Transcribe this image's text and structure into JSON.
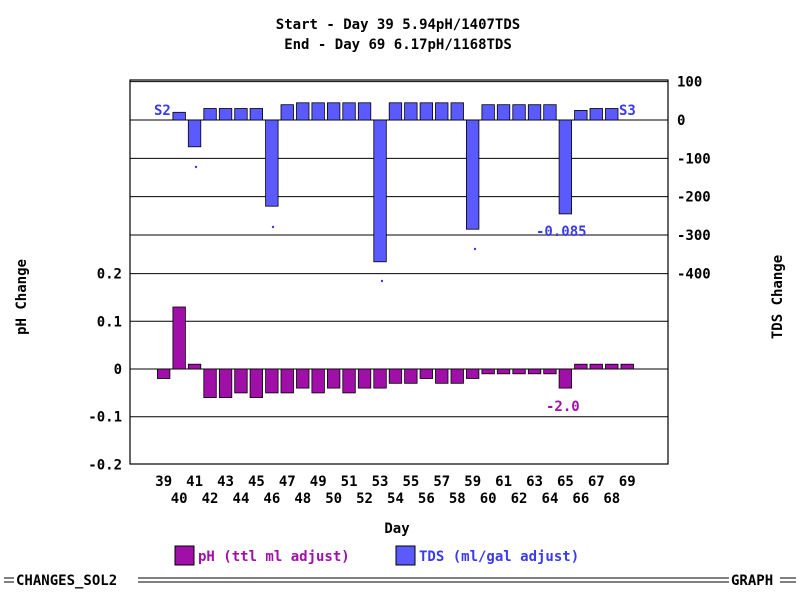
{
  "window": {
    "left_label": "CHANGES_SOL2",
    "right_label": "GRAPH"
  },
  "chart_data": {
    "type": "bar",
    "title_lines": [
      "Start - Day 39 5.94pH/1407TDS",
      "End - Day 69 6.17pH/1168TDS"
    ],
    "xlabel": "Day",
    "ylabel_left": "pH Change",
    "ylabel_right": "TDS Change",
    "x": [
      39,
      40,
      41,
      42,
      43,
      44,
      45,
      46,
      47,
      48,
      49,
      50,
      51,
      52,
      53,
      54,
      55,
      56,
      57,
      58,
      59,
      60,
      61,
      62,
      63,
      64,
      65,
      66,
      67,
      68,
      69
    ],
    "x_ticks_row1": [
      "39",
      "41",
      "43",
      "45",
      "47",
      "49",
      "51",
      "53",
      "55",
      "57",
      "59",
      "61",
      "63",
      "65",
      "67",
      "69"
    ],
    "x_ticks_row2": [
      "40",
      "42",
      "44",
      "46",
      "48",
      "50",
      "52",
      "54",
      "56",
      "58",
      "60",
      "62",
      "64",
      "66",
      "68"
    ],
    "series": [
      {
        "name": "pH (ttl ml adjust)",
        "color": "#a010a8",
        "ylim": [
          -0.2,
          0.2
        ],
        "y_ticks": [
          "0.2",
          "0.1",
          "0",
          "-0.1",
          "-0.2"
        ],
        "values": [
          -0.02,
          0.13,
          0.01,
          -0.06,
          -0.06,
          -0.05,
          -0.06,
          -0.05,
          -0.05,
          -0.04,
          -0.05,
          -0.04,
          -0.05,
          -0.04,
          -0.04,
          -0.03,
          -0.03,
          -0.02,
          -0.03,
          -0.03,
          -0.02,
          -0.01,
          -0.01,
          -0.01,
          -0.01,
          -0.01,
          -0.04,
          0.01,
          0.01,
          0.01,
          0.01
        ]
      },
      {
        "name": "TDS (ml/gal adjust)",
        "color": "#5a5aff",
        "ylim": [
          -400,
          100
        ],
        "y_ticks": [
          "100",
          "0",
          "-100",
          "-200",
          "-300",
          "-400"
        ],
        "values": [
          null,
          20,
          -70,
          30,
          30,
          30,
          30,
          -225,
          40,
          45,
          45,
          45,
          45,
          45,
          -370,
          45,
          45,
          45,
          45,
          45,
          -285,
          40,
          40,
          40,
          40,
          40,
          -245,
          25,
          30,
          30,
          null
        ]
      }
    ],
    "annotations": [
      {
        "text": "S2",
        "series": "TDS",
        "color": "#3a3aee"
      },
      {
        "text": "S3",
        "series": "TDS",
        "color": "#3a3aee"
      },
      {
        "text": "-0.085",
        "series": "TDS",
        "color": "#3a3aee"
      },
      {
        "text": "-2.0",
        "series": "pH",
        "color": "#a010a8"
      }
    ],
    "legend": [
      {
        "label": "pH (ttl ml adjust)",
        "color": "#a010a8",
        "text_color": "#a010a8"
      },
      {
        "label": "TDS (ml/gal adjust)",
        "color": "#5a5aff",
        "text_color": "#3a3aee"
      }
    ]
  }
}
